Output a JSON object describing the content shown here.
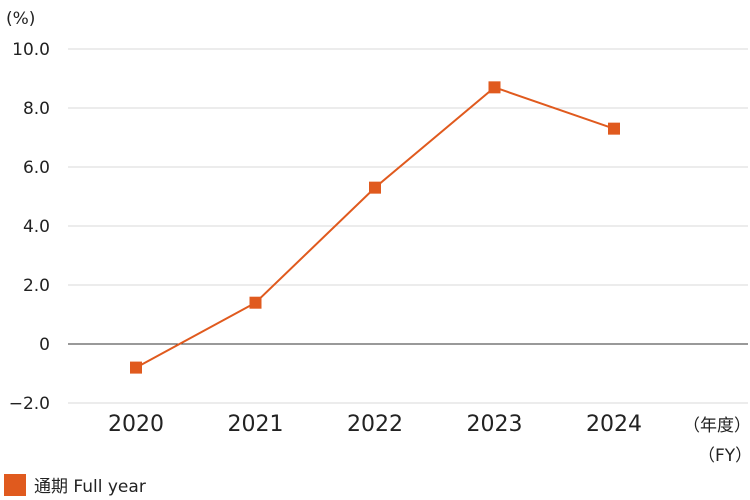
{
  "chart_data": {
    "type": "line",
    "y_unit_label": "(%)",
    "x_unit_label": "（年度）",
    "x_unit_label_en": "（FY）",
    "categories": [
      "2020",
      "2021",
      "2022",
      "2023",
      "2024"
    ],
    "yticks": [
      "10.0",
      "8.0",
      "6.0",
      "4.0",
      "2.0",
      "0",
      "−2.0"
    ],
    "ytick_values": [
      10,
      8,
      6,
      4,
      2,
      0,
      -2
    ],
    "ylim": [
      -2,
      10
    ],
    "grid": true,
    "legend_position": "bottom-left",
    "series": [
      {
        "name": "通期 Full year",
        "values": [
          -0.8,
          1.4,
          5.3,
          8.7,
          7.3
        ],
        "color": "#e05a1e",
        "marker": "square"
      }
    ]
  }
}
